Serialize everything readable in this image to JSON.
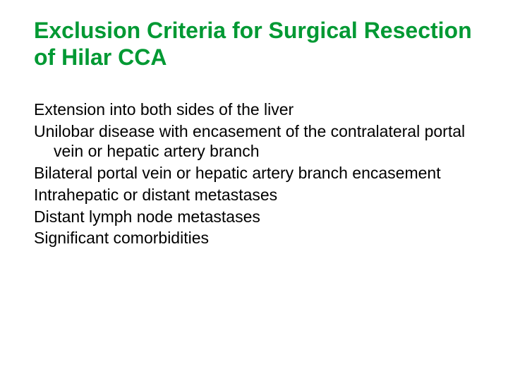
{
  "slide": {
    "title": "Exclusion Criteria for Surgical Resection of Hilar CCA",
    "title_color": "#009933",
    "title_fontsize": 32,
    "title_fontweight": "bold",
    "body_color": "#000000",
    "body_fontsize": 23,
    "background_color": "#ffffff",
    "bullets": [
      "Extension into both sides of the liver",
      "Unilobar disease with encasement of the contralateral portal vein or hepatic artery branch",
      "Bilateral portal vein or hepatic artery branch encasement",
      "Intrahepatic or distant metastases",
      "Distant lymph node metastases",
      "Significant comorbidities"
    ]
  }
}
